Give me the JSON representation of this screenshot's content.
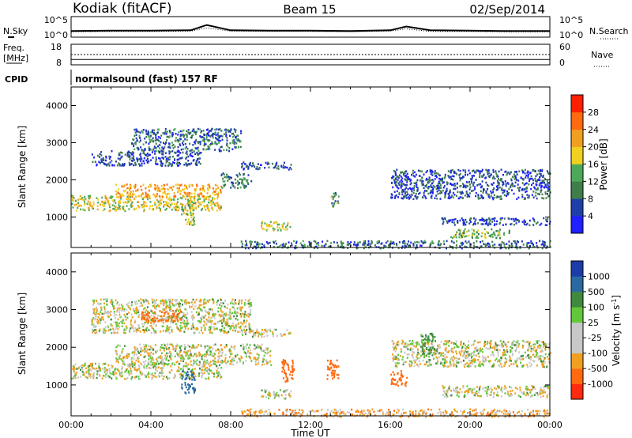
{
  "header": {
    "site": "Kodiak (fitACF)",
    "beam": "Beam 15",
    "date": "02/Sep/2014"
  },
  "panel_labels": {
    "nsky": "N.Sky",
    "nsearch": "N.Search",
    "freq_line1": "Freq.",
    "freq_line2": "[MHz]",
    "nave": "Nave",
    "cpid": "CPID",
    "cpid_value": "normalsound (fast) 157 RF"
  },
  "colors": {
    "axis": "#000000",
    "power_scale": [
      "#1f1fff",
      "#1e3ea8",
      "#3f7d4a",
      "#4ea85a",
      "#f0d020",
      "#f0a020",
      "#ff6a10",
      "#ff2000"
    ],
    "velocity_scale": [
      "#1c3ca8",
      "#2a6aa0",
      "#3f8a3f",
      "#62c83a",
      "#c8c8c8",
      "#c8c8c8",
      "#f0a020",
      "#ff6a10",
      "#ff2a10"
    ]
  },
  "chart_data": [
    {
      "type": "line",
      "name": "noise-panel",
      "left_axis_label": "N.Sky",
      "right_axis_label": "N.Search",
      "left_ticks": [
        "10^5",
        "10^0"
      ],
      "right_ticks": [
        "10^5",
        "10^0"
      ],
      "ylim_log10": [
        0,
        5
      ],
      "x_hours": [
        0,
        2,
        4,
        6,
        6.8,
        8,
        10,
        12,
        14,
        16,
        16.8,
        18,
        20,
        22,
        24
      ],
      "series": [
        {
          "values_log10": [
            1.4,
            1.5,
            1.5,
            1.6,
            3.0,
            1.6,
            1.5,
            1.5,
            1.4,
            1.6,
            2.6,
            1.6,
            1.5,
            1.4,
            1.4
          ]
        },
        {
          "values_log10": [
            1.2,
            1.3,
            1.3,
            1.4,
            2.2,
            1.4,
            1.3,
            1.3,
            1.2,
            1.4,
            2.0,
            1.3,
            1.3,
            1.2,
            1.2
          ]
        }
      ]
    },
    {
      "type": "line",
      "name": "freq-nave-panel",
      "left_ticks": [
        "18",
        "8"
      ],
      "right_ticks": [
        "60",
        "0"
      ],
      "freq_mhz": 10.4,
      "nave": 30,
      "ylim_freq": [
        8,
        18
      ]
    },
    {
      "type": "heatmap",
      "name": "power",
      "ylabel": "Slant Range [km]",
      "xlabel": "",
      "colorbar_label": "Power [dB]",
      "colorbar_ticks": [
        "28",
        "24",
        "20",
        "16",
        "12",
        "8",
        "4"
      ],
      "y_ticks": [
        "4000",
        "3000",
        "2000",
        "1000"
      ],
      "xlim_hours": [
        0,
        24
      ],
      "ylim_km": [
        180,
        4500
      ],
      "regions": [
        {
          "t0": 0.0,
          "t1": 7.5,
          "r0": 1180,
          "r1": 1600,
          "power": 18
        },
        {
          "t0": 2.2,
          "t1": 7.5,
          "r0": 1550,
          "r1": 1900,
          "power": 22
        },
        {
          "t0": 5.5,
          "t1": 6.2,
          "r0": 800,
          "r1": 1400,
          "power": 16
        },
        {
          "t0": 7.5,
          "t1": 9.0,
          "r0": 1800,
          "r1": 2200,
          "power": 10
        },
        {
          "t0": 1.0,
          "t1": 6.5,
          "r0": 2400,
          "r1": 2800,
          "power": 6
        },
        {
          "t0": 3.0,
          "t1": 8.5,
          "r0": 2800,
          "r1": 3400,
          "power": 8
        },
        {
          "t0": 8.5,
          "t1": 11.0,
          "r0": 2300,
          "r1": 2500,
          "power": 6
        },
        {
          "t0": 9.5,
          "t1": 11.0,
          "r0": 650,
          "r1": 900,
          "power": 18
        },
        {
          "t0": 13.0,
          "t1": 13.4,
          "r0": 1300,
          "r1": 1700,
          "power": 12
        },
        {
          "t0": 16.0,
          "t1": 24.0,
          "r0": 1500,
          "r1": 2300,
          "power": 6
        },
        {
          "t0": 18.5,
          "t1": 24.0,
          "r0": 800,
          "r1": 1000,
          "power": 6
        },
        {
          "t0": 19.0,
          "t1": 22.0,
          "r0": 450,
          "r1": 700,
          "power": 14
        },
        {
          "t0": 8.5,
          "t1": 24.0,
          "r0": 180,
          "r1": 380,
          "power": 8
        }
      ]
    },
    {
      "type": "heatmap",
      "name": "velocity",
      "ylabel": "Slant Range [km]",
      "xlabel": "Time UT",
      "colorbar_label": "Velocity [m s^-1]",
      "colorbar_ticks": [
        "1000",
        "500",
        "100",
        "25",
        "-25",
        "-100",
        "-500",
        "-1000"
      ],
      "y_ticks": [
        "4000",
        "3000",
        "2000",
        "1000"
      ],
      "x_ticks": [
        "00:00",
        "04:00",
        "08:00",
        "12:00",
        "16:00",
        "20:00",
        "00:00"
      ],
      "xlim_hours": [
        0,
        24
      ],
      "ylim_km": [
        180,
        4500
      ],
      "regions": [
        {
          "t0": 0.0,
          "t1": 7.5,
          "r0": 1180,
          "r1": 1600,
          "velocity": 0
        },
        {
          "t0": 2.2,
          "t1": 10.0,
          "r0": 1550,
          "r1": 2100,
          "velocity": 0
        },
        {
          "t0": 5.5,
          "t1": 6.2,
          "r0": 800,
          "r1": 1400,
          "velocity": 400
        },
        {
          "t0": 1.0,
          "t1": 9.0,
          "r0": 2400,
          "r1": 3300,
          "velocity": 0
        },
        {
          "t0": 3.5,
          "t1": 5.5,
          "r0": 2700,
          "r1": 3000,
          "velocity": -300
        },
        {
          "t0": 8.5,
          "t1": 11.0,
          "r0": 2300,
          "r1": 2500,
          "velocity": 0
        },
        {
          "t0": 9.5,
          "t1": 11.0,
          "r0": 650,
          "r1": 900,
          "velocity": 0
        },
        {
          "t0": 10.5,
          "t1": 11.2,
          "r0": 1100,
          "r1": 1700,
          "velocity": -400
        },
        {
          "t0": 12.8,
          "t1": 13.4,
          "r0": 1150,
          "r1": 1700,
          "velocity": -400
        },
        {
          "t0": 16.0,
          "t1": 16.8,
          "r0": 1000,
          "r1": 1400,
          "velocity": -400
        },
        {
          "t0": 16.0,
          "t1": 24.0,
          "r0": 1500,
          "r1": 2200,
          "velocity": 0
        },
        {
          "t0": 17.5,
          "t1": 18.3,
          "r0": 1800,
          "r1": 2400,
          "velocity": 120
        },
        {
          "t0": 18.5,
          "t1": 24.0,
          "r0": 700,
          "r1": 1000,
          "velocity": 0
        },
        {
          "t0": 8.5,
          "t1": 24.0,
          "r0": 180,
          "r1": 380,
          "velocity": -60
        }
      ]
    }
  ]
}
